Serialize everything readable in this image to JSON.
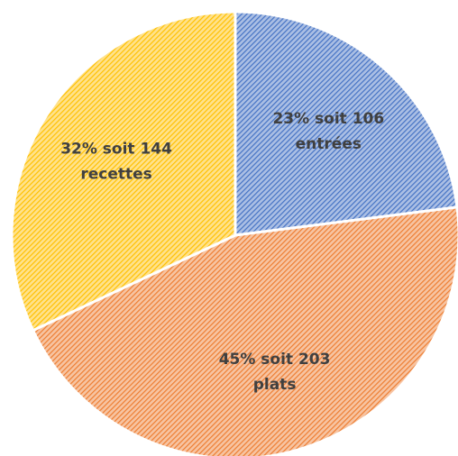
{
  "chart_data": {
    "type": "pie",
    "categories": [
      "entrées",
      "plats",
      "recettes"
    ],
    "values": [
      23,
      45,
      32
    ],
    "value_labels": [
      "23% soit 106",
      "45% soit 203",
      "32% soit 144"
    ],
    "colors": [
      "#4472c4",
      "#ed7d31",
      "#ffc000"
    ]
  }
}
